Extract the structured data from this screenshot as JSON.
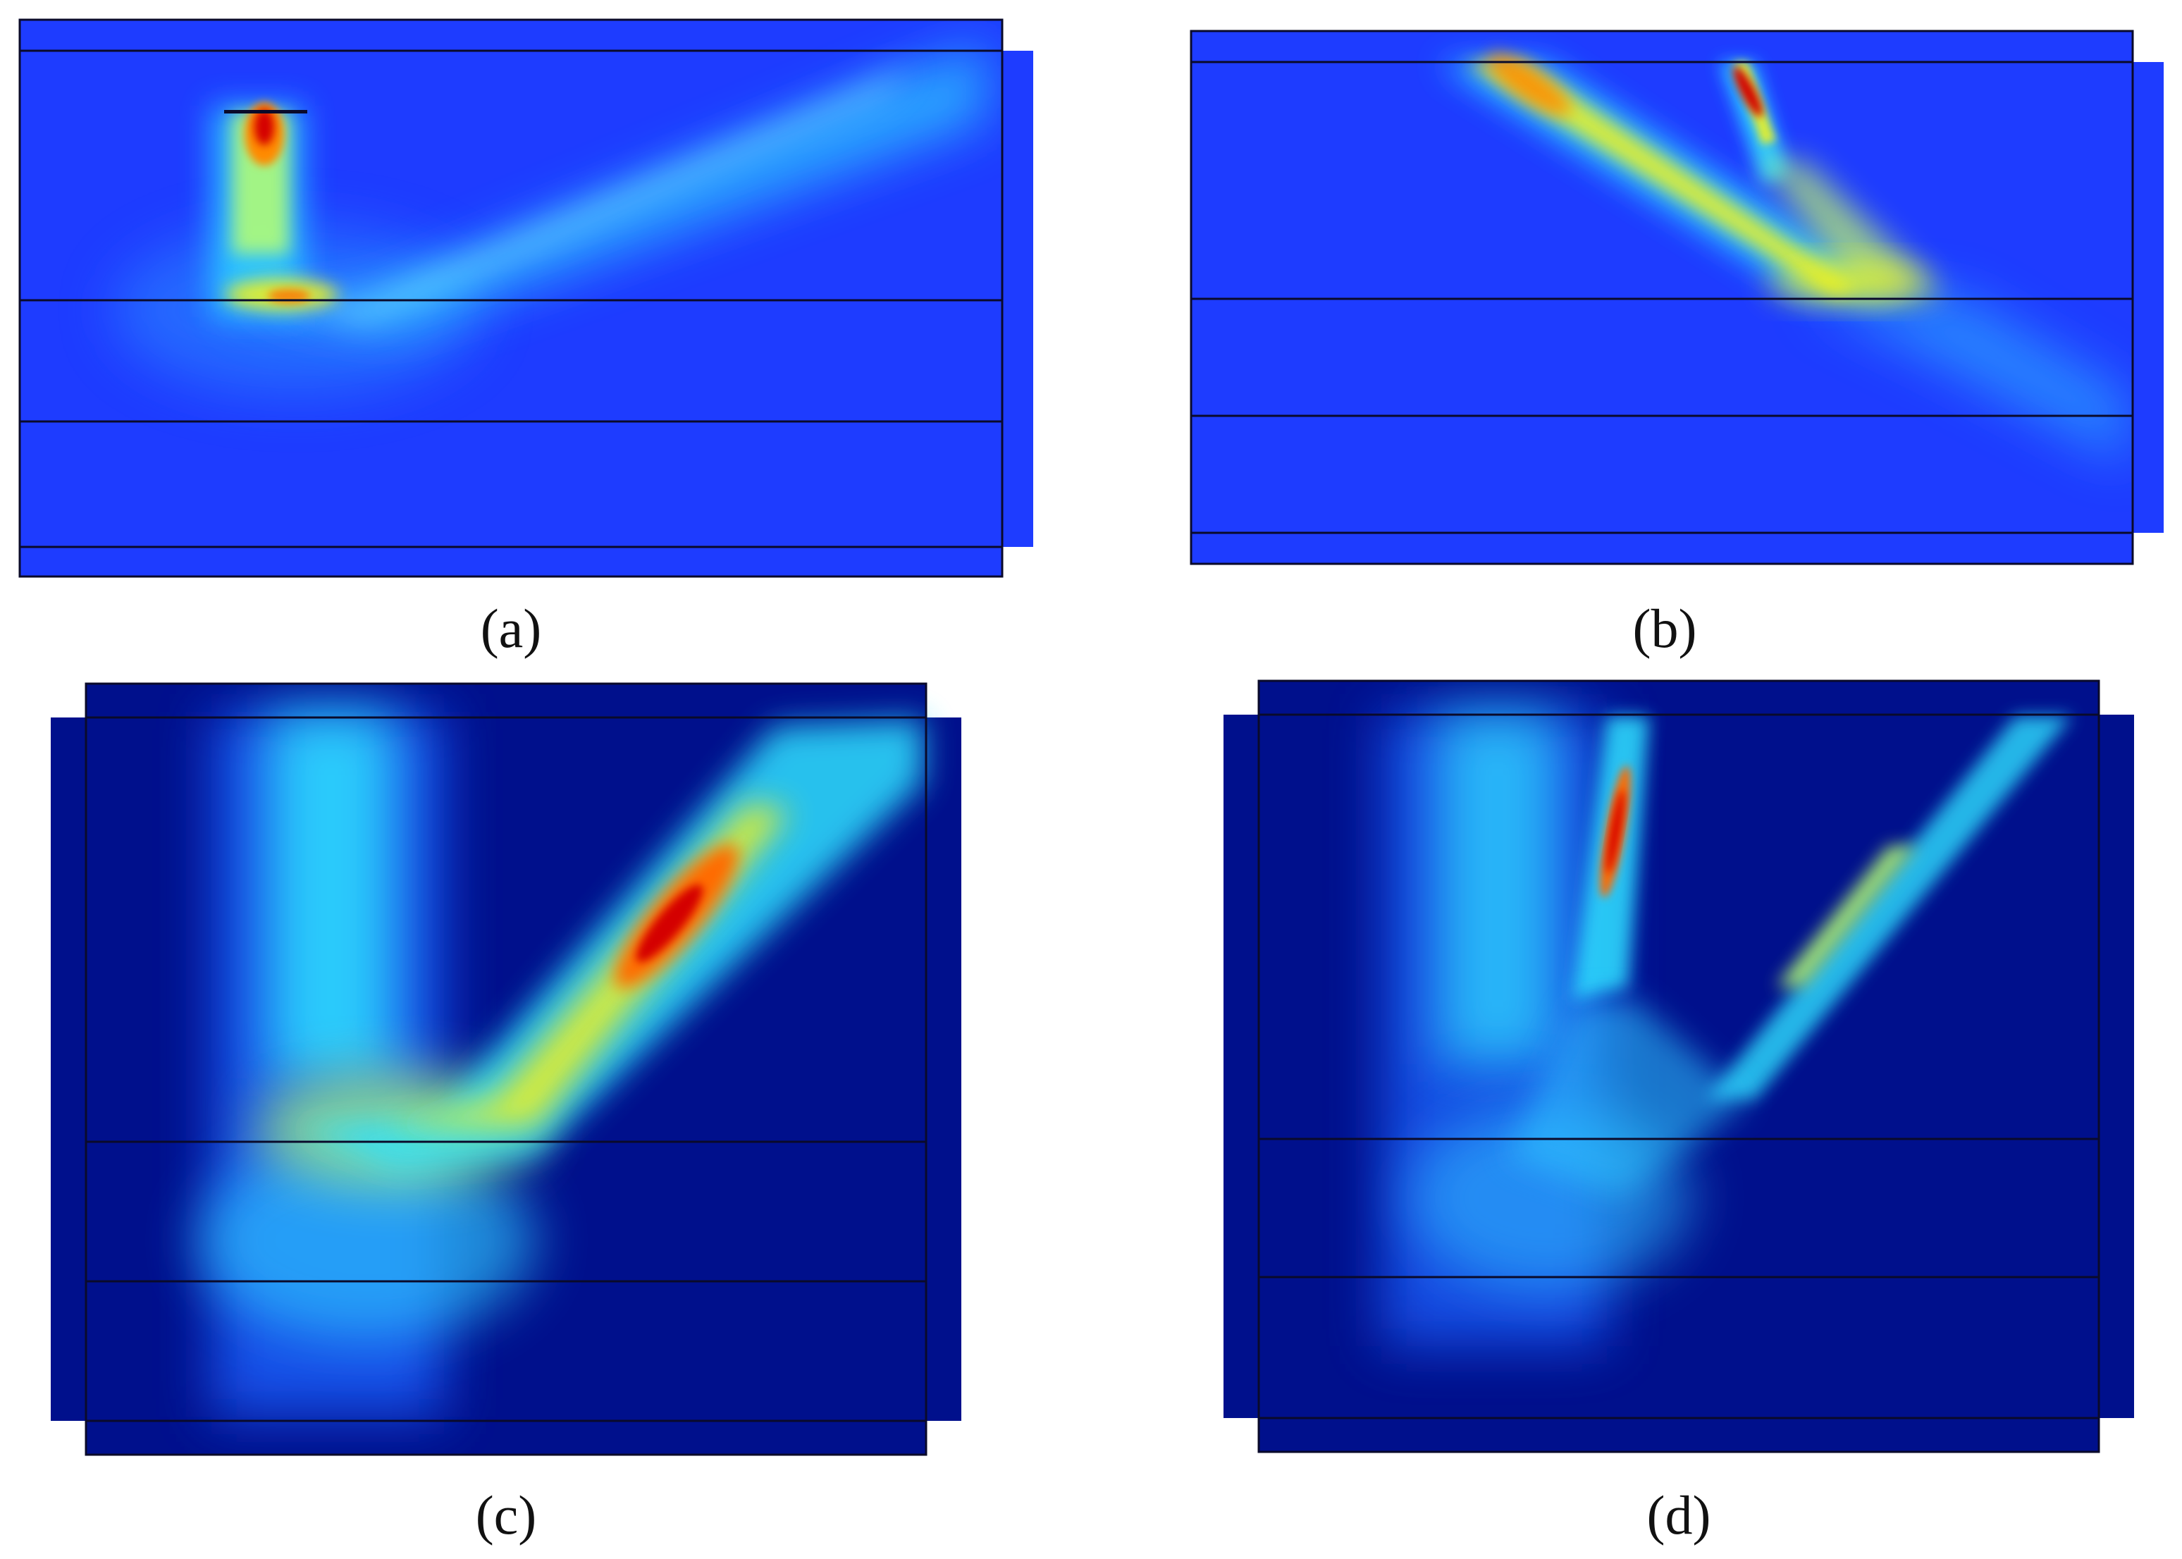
{
  "figure": {
    "panels": [
      {
        "id": "a",
        "caption": "(a)"
      },
      {
        "id": "b",
        "caption": "(b)"
      },
      {
        "id": "c",
        "caption": "(c)"
      },
      {
        "id": "d",
        "caption": "(d)"
      }
    ],
    "colors": {
      "background_blue": "#1e3cff",
      "deep_blue": "#00108c",
      "cyan": "#2fe0ff",
      "light_cyan": "#7ff4ff",
      "yellow": "#f2f21a",
      "orange": "#ff8a00",
      "red": "#d40000",
      "boundary_line": "#0a0a2a"
    }
  }
}
